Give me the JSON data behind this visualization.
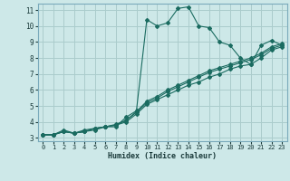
{
  "title": "",
  "xlabel": "Humidex (Indice chaleur)",
  "bg_color": "#cde8e8",
  "grid_color": "#aacccc",
  "line_color": "#1a6b60",
  "xlim": [
    -0.5,
    23.5
  ],
  "ylim": [
    2.8,
    11.4
  ],
  "xticks": [
    0,
    1,
    2,
    3,
    4,
    5,
    6,
    7,
    8,
    9,
    10,
    11,
    12,
    13,
    14,
    15,
    16,
    17,
    18,
    19,
    20,
    21,
    22,
    23
  ],
  "yticks": [
    3,
    4,
    5,
    6,
    7,
    8,
    9,
    10,
    11
  ],
  "line1_x": [
    0,
    1,
    2,
    3,
    4,
    5,
    6,
    7,
    8,
    9,
    10,
    11,
    12,
    13,
    14,
    15,
    16,
    17,
    18,
    19,
    20,
    21,
    22,
    23
  ],
  "line1_y": [
    3.2,
    3.2,
    3.5,
    3.3,
    3.5,
    3.6,
    3.7,
    3.7,
    4.3,
    4.7,
    10.4,
    10.0,
    10.2,
    11.1,
    11.2,
    10.0,
    9.9,
    9.0,
    8.8,
    8.0,
    7.6,
    8.8,
    9.1,
    8.8
  ],
  "line2_x": [
    0,
    1,
    2,
    3,
    4,
    5,
    6,
    7,
    8,
    9,
    10,
    11,
    12,
    13,
    14,
    15,
    16,
    17,
    18,
    19,
    20,
    21,
    22,
    23
  ],
  "line2_y": [
    3.2,
    3.2,
    3.4,
    3.3,
    3.4,
    3.5,
    3.7,
    3.8,
    4.0,
    4.5,
    5.1,
    5.4,
    5.7,
    6.0,
    6.3,
    6.5,
    6.8,
    7.0,
    7.3,
    7.5,
    7.6,
    8.0,
    8.5,
    8.7
  ],
  "line3_x": [
    0,
    1,
    2,
    3,
    4,
    5,
    6,
    7,
    8,
    9,
    10,
    11,
    12,
    13,
    14,
    15,
    16,
    17,
    18,
    19,
    20,
    21,
    22,
    23
  ],
  "line3_y": [
    3.2,
    3.2,
    3.4,
    3.3,
    3.4,
    3.6,
    3.7,
    3.8,
    4.1,
    4.6,
    5.2,
    5.5,
    5.9,
    6.2,
    6.5,
    6.8,
    7.1,
    7.3,
    7.5,
    7.7,
    7.9,
    8.2,
    8.6,
    8.8
  ],
  "line4_x": [
    0,
    1,
    2,
    3,
    4,
    5,
    6,
    7,
    8,
    9,
    10,
    11,
    12,
    13,
    14,
    15,
    16,
    17,
    18,
    19,
    20,
    21,
    22,
    23
  ],
  "line4_y": [
    3.2,
    3.2,
    3.4,
    3.3,
    3.4,
    3.6,
    3.7,
    3.85,
    4.1,
    4.65,
    5.3,
    5.6,
    6.0,
    6.3,
    6.6,
    6.9,
    7.2,
    7.4,
    7.6,
    7.8,
    8.0,
    8.3,
    8.7,
    8.9
  ]
}
